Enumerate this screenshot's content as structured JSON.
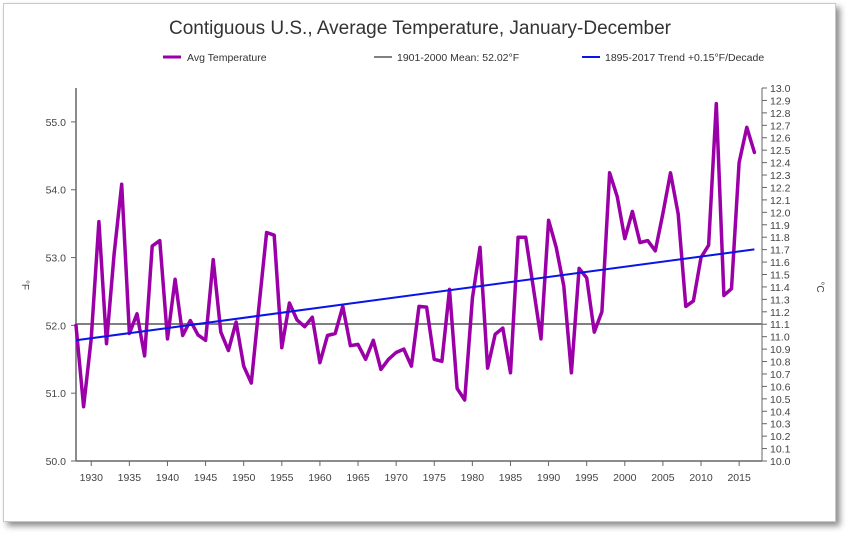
{
  "chart_data": {
    "type": "line",
    "title": "Contiguous U.S., Average Temperature, January-December",
    "ylabel": "°F",
    "y2label": "°C",
    "xlim": [
      1928,
      2018
    ],
    "ylim": [
      50.0,
      55.5
    ],
    "y2lim": [
      10.0,
      13.0
    ],
    "x_ticks": [
      1930,
      1935,
      1940,
      1945,
      1950,
      1955,
      1960,
      1965,
      1970,
      1975,
      1980,
      1985,
      1990,
      1995,
      2000,
      2005,
      2010,
      2015
    ],
    "y_ticks": [
      "50.0",
      "51.0",
      "52.0",
      "53.0",
      "54.0",
      "55.0"
    ],
    "y2_ticks": [
      "10.0",
      "10.1",
      "10.2",
      "10.3",
      "10.4",
      "10.5",
      "10.6",
      "10.7",
      "10.8",
      "10.9",
      "11.0",
      "11.1",
      "11.2",
      "11.3",
      "11.4",
      "11.5",
      "11.6",
      "11.7",
      "11.8",
      "11.9",
      "12.0",
      "12.1",
      "12.2",
      "12.3",
      "12.4",
      "12.5",
      "12.6",
      "12.7",
      "12.8",
      "12.9",
      "13.0"
    ],
    "grid": false,
    "legend_position": "top",
    "series": [
      {
        "name": "Avg Temperature",
        "color": "#9b00a8",
        "x": [
          1928,
          1929,
          1930,
          1931,
          1932,
          1933,
          1934,
          1935,
          1936,
          1937,
          1938,
          1939,
          1940,
          1941,
          1942,
          1943,
          1944,
          1945,
          1946,
          1947,
          1948,
          1949,
          1950,
          1951,
          1952,
          1953,
          1954,
          1955,
          1956,
          1957,
          1958,
          1959,
          1960,
          1961,
          1962,
          1963,
          1964,
          1965,
          1966,
          1967,
          1968,
          1969,
          1970,
          1971,
          1972,
          1973,
          1974,
          1975,
          1976,
          1977,
          1978,
          1979,
          1980,
          1981,
          1982,
          1983,
          1984,
          1985,
          1986,
          1987,
          1988,
          1989,
          1990,
          1991,
          1992,
          1993,
          1994,
          1995,
          1996,
          1997,
          1998,
          1999,
          2000,
          2001,
          2002,
          2003,
          2004,
          2005,
          2006,
          2007,
          2008,
          2009,
          2010,
          2011,
          2012,
          2013,
          2014,
          2015,
          2016,
          2017
        ],
        "y": [
          52.0,
          50.8,
          51.8,
          53.53,
          51.73,
          53.05,
          54.08,
          51.88,
          52.17,
          51.55,
          53.17,
          53.25,
          51.8,
          52.68,
          51.85,
          52.07,
          51.86,
          51.78,
          52.97,
          51.9,
          51.63,
          52.05,
          51.4,
          51.15,
          52.27,
          53.37,
          53.33,
          51.67,
          52.33,
          52.08,
          51.98,
          52.12,
          51.45,
          51.85,
          51.88,
          52.28,
          51.7,
          51.72,
          51.5,
          51.78,
          51.35,
          51.5,
          51.6,
          51.65,
          51.4,
          52.28,
          52.27,
          51.5,
          51.47,
          52.53,
          51.07,
          50.9,
          52.4,
          53.15,
          51.37,
          51.87,
          51.96,
          51.3,
          53.3,
          53.3,
          52.56,
          51.8,
          53.55,
          53.15,
          52.58,
          51.3,
          52.84,
          52.7,
          51.9,
          52.2,
          54.25,
          53.9,
          53.28,
          53.68,
          53.22,
          53.25,
          53.1,
          53.65,
          54.25,
          53.64,
          52.28,
          52.36,
          53.0,
          53.18,
          55.27,
          52.44,
          52.54,
          54.4,
          54.92,
          54.55
        ]
      },
      {
        "name": "1901-2000 Mean: 52.02°F",
        "color": "#808080",
        "value": 52.02
      },
      {
        "name": "1895-2017 Trend +0.15°F/Decade",
        "color": "#0a14e6",
        "x": [
          1928,
          2017
        ],
        "y": [
          51.78,
          53.12
        ]
      }
    ]
  }
}
